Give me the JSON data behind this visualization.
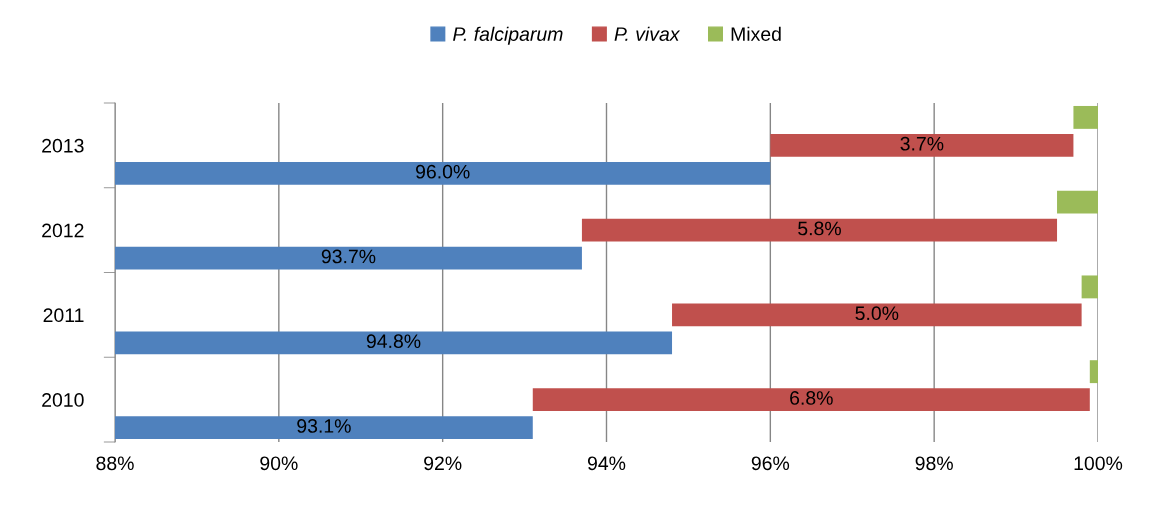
{
  "chart_data": {
    "type": "bar",
    "orientation": "horizontal",
    "categories": [
      "2013",
      "2012",
      "2011",
      "2010"
    ],
    "series": [
      {
        "name": "P. falciparum",
        "color": "#4f81bd",
        "values": [
          96.0,
          93.7,
          94.8,
          93.1
        ],
        "value_labels": [
          "96.0%",
          "93.7%",
          "94.8%",
          "93.1%"
        ]
      },
      {
        "name": "P. vivax",
        "color": "#c0504d",
        "base": [
          96.0,
          93.7,
          94.8,
          93.1
        ],
        "values": [
          3.7,
          5.8,
          5.0,
          6.8
        ],
        "value_labels": [
          "3.7%",
          "5.8%",
          "5.0%",
          "6.8%"
        ]
      },
      {
        "name": "Mixed",
        "color": "#9bbb59",
        "base": [
          99.7,
          99.5,
          99.8,
          99.9
        ],
        "values": [
          0.3,
          0.5,
          0.2,
          0.1
        ]
      }
    ],
    "xlim": [
      88,
      100
    ],
    "xticks": [
      {
        "value": 88,
        "label": "88%"
      },
      {
        "value": 90,
        "label": "90%"
      },
      {
        "value": 92,
        "label": "92%"
      },
      {
        "value": 94,
        "label": "94%"
      },
      {
        "value": 96,
        "label": "96%"
      },
      {
        "value": 98,
        "label": "98%"
      },
      {
        "value": 100,
        "label": "100%"
      }
    ],
    "grid": "x",
    "legend": "top"
  }
}
